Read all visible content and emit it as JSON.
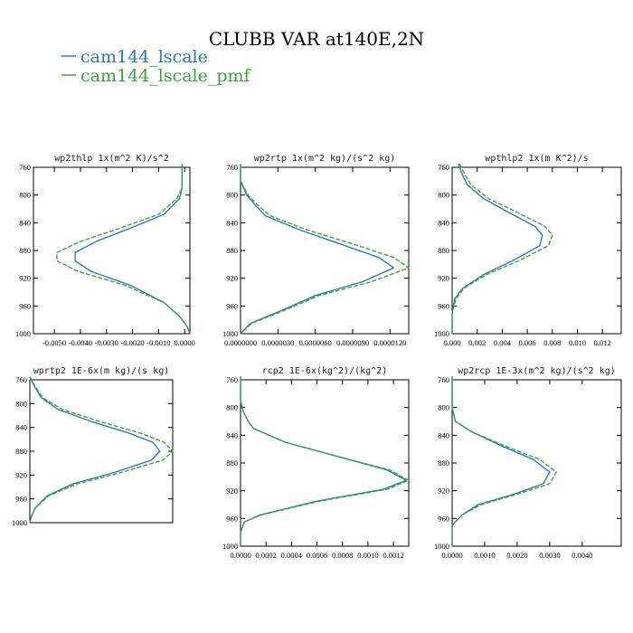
{
  "figure": {
    "title": "CLUBB VAR at140E,2N",
    "legend": [
      {
        "label": "cam144_lscale",
        "color": "#2b7bba"
      },
      {
        "label": "cam144_lscale_pmf",
        "color": "#3aa63a"
      }
    ]
  },
  "chart_data": [
    {
      "type": "line",
      "title": "wp2thlp   1x(m^2 K)/s^2",
      "xlim": [
        -0.0058,
        0.0002
      ],
      "ylim": [
        760,
        1000
      ],
      "xticks": [
        "-0.0050",
        "-0.0040",
        "-0.0030",
        "-0.0020",
        "-0.0010",
        "0.0000"
      ],
      "xtick_values": [
        -0.005,
        -0.004,
        -0.003,
        -0.002,
        -0.001,
        0.0
      ],
      "yticks": [
        760,
        800,
        840,
        880,
        920,
        960,
        1000
      ],
      "y": [
        755,
        770,
        790,
        805,
        828,
        848,
        867,
        883,
        895,
        910,
        930,
        955,
        975,
        990,
        1000
      ],
      "series": [
        {
          "name": "cam144_lscale",
          "values": [
            -0.0001,
            -0.0001,
            -0.0001,
            -0.0002,
            -0.0008,
            -0.0021,
            -0.0034,
            -0.0042,
            -0.0042,
            -0.0036,
            -0.0021,
            -0.0008,
            -0.0002,
            0.0001,
            0.0002
          ]
        },
        {
          "name": "cam144_lscale_pmf",
          "values": [
            -0.0001,
            -0.0001,
            -0.0001,
            -0.0003,
            -0.001,
            -0.0025,
            -0.004,
            -0.0049,
            -0.0049,
            -0.0041,
            -0.0023,
            -0.0008,
            -0.0002,
            0.0001,
            0.0002
          ]
        }
      ]
    },
    {
      "type": "line",
      "title": "wp2rtp   1x(m^2 kg)/(s^2 kg)",
      "xlim": [
        0,
        1.35e-05
      ],
      "ylim": [
        760,
        1000
      ],
      "xticks": [
        "0.0000000",
        "0.0000030",
        "0.0000060",
        "0.0000090",
        "0.0000120"
      ],
      "xtick_values": [
        0.0,
        3e-06,
        6e-06,
        9e-06,
        1.2e-05
      ],
      "yticks": [
        760,
        800,
        840,
        880,
        920,
        960,
        1000
      ],
      "y": [
        755,
        780,
        800,
        815,
        830,
        850,
        870,
        890,
        905,
        925,
        945,
        965,
        985,
        1000
      ],
      "series": [
        {
          "name": "cam144_lscale",
          "values": [
            0.0,
            0.0,
            5e-07,
            1.2e-06,
            2e-06,
            4.7e-06,
            7.9e-06,
            1.11e-05,
            1.23e-05,
            9.8e-06,
            6e-06,
            3.5e-06,
            8e-07,
            0.0
          ]
        },
        {
          "name": "cam144_lscale_pmf",
          "values": [
            0.0,
            0.0,
            6e-07,
            1.4e-06,
            2.4e-06,
            5.3e-06,
            8.9e-06,
            1.23e-05,
            1.35e-05,
            1.05e-05,
            6.3e-06,
            3.7e-06,
            9e-07,
            0.0
          ]
        }
      ]
    },
    {
      "type": "line",
      "title": "wpthlp2   1x(m K^2)/s",
      "xlim": [
        0,
        0.0135
      ],
      "ylim": [
        760,
        1000
      ],
      "xticks": [
        "0.000",
        "0.002",
        "0.004",
        "0.006",
        "0.008",
        "0.010",
        "0.012"
      ],
      "xtick_values": [
        0.0,
        0.002,
        0.004,
        0.006,
        0.008,
        0.01,
        0.012
      ],
      "yticks": [
        760,
        800,
        840,
        880,
        920,
        960,
        1000
      ],
      "y": [
        755,
        770,
        785,
        805,
        825,
        845,
        858,
        873,
        895,
        915,
        935,
        950,
        970,
        985,
        1000
      ],
      "series": [
        {
          "name": "cam144_lscale",
          "values": [
            0.0005,
            0.0008,
            0.0012,
            0.0025,
            0.0045,
            0.0066,
            0.0072,
            0.007,
            0.0048,
            0.0025,
            0.0008,
            0.0002,
            0.0,
            0.0,
            0.0
          ]
        },
        {
          "name": "cam144_lscale_pmf",
          "values": [
            0.0006,
            0.001,
            0.0015,
            0.0029,
            0.0052,
            0.0074,
            0.008,
            0.0077,
            0.0053,
            0.0027,
            0.0009,
            0.0003,
            0.0,
            0.0,
            0.0
          ]
        }
      ]
    },
    {
      "type": "line",
      "title": "wprtp2   1E-6x(m kg)/(s kg)",
      "xlim": [
        0,
        10
      ],
      "ylim": [
        760,
        1000
      ],
      "xticks": [],
      "xtick_values": [],
      "yticks": [
        760,
        800,
        840,
        880,
        920,
        960,
        1000
      ],
      "y": [
        755,
        770,
        790,
        810,
        830,
        850,
        865,
        880,
        895,
        915,
        935,
        955,
        975,
        990,
        1000
      ],
      "series": [
        {
          "name": "cam144_lscale",
          "values": [
            0.0,
            0.3,
            0.8,
            2.0,
            4.3,
            7.0,
            8.6,
            9.1,
            8.5,
            6.0,
            3.0,
            1.2,
            0.4,
            0.1,
            0.0
          ]
        },
        {
          "name": "cam144_lscale_pmf",
          "values": [
            0.0,
            0.35,
            0.9,
            2.3,
            4.9,
            7.8,
            9.4,
            10.0,
            9.3,
            6.5,
            3.3,
            1.3,
            0.4,
            0.1,
            0.0
          ]
        }
      ]
    },
    {
      "type": "line",
      "title": "rcp2   1E-6x(kg^2)/(kg^2)",
      "xlim": [
        0,
        0.00132
      ],
      "ylim": [
        760,
        1000
      ],
      "xticks": [
        "0.0000",
        "0.0002",
        "0.0004",
        "0.0006",
        "0.0008",
        "0.0010",
        "0.0012"
      ],
      "xtick_values": [
        0.0,
        0.0002,
        0.0004,
        0.0006,
        0.0008,
        0.001,
        0.0012
      ],
      "yticks": [
        760,
        800,
        840,
        880,
        920,
        960,
        1000
      ],
      "y": [
        755,
        790,
        805,
        820,
        830,
        850,
        870,
        890,
        905,
        918,
        935,
        955,
        965,
        980,
        1000
      ],
      "series": [
        {
          "name": "cam144_lscale",
          "values": [
            0.0,
            0.0,
            2e-05,
            6e-05,
            0.0001,
            0.00035,
            0.00075,
            0.00115,
            0.0013,
            0.00112,
            0.0006,
            0.00015,
            3e-05,
            0.0,
            0.0
          ]
        },
        {
          "name": "cam144_lscale_pmf",
          "values": [
            0.0,
            0.0,
            2e-05,
            6e-05,
            0.0001,
            0.00035,
            0.00075,
            0.00117,
            0.00132,
            0.00115,
            0.00062,
            0.00016,
            3e-05,
            0.0,
            0.0
          ]
        }
      ]
    },
    {
      "type": "line",
      "title": "wp2rcp   1E-3x(m^2 kg)/(s^2 kg)",
      "xlim": [
        0,
        0.0052
      ],
      "ylim": [
        760,
        1000
      ],
      "xticks": [
        "0.0000",
        "0.0010",
        "0.0020",
        "0.0030",
        "0.0040"
      ],
      "xtick_values": [
        0.0,
        0.001,
        0.002,
        0.003,
        0.004
      ],
      "yticks": [
        760,
        800,
        840,
        880,
        920,
        960,
        1000
      ],
      "y": [
        755,
        800,
        820,
        835,
        855,
        875,
        893,
        910,
        925,
        940,
        955,
        970,
        985,
        1000
      ],
      "series": [
        {
          "name": "cam144_lscale",
          "values": [
            0.0,
            0.0,
            0.0001,
            0.0006,
            0.0015,
            0.0025,
            0.003,
            0.0028,
            0.0019,
            0.0008,
            0.0003,
            0.0,
            0.0,
            0.0
          ]
        },
        {
          "name": "cam144_lscale_pmf",
          "values": [
            0.0,
            0.0,
            0.0001,
            0.0006,
            0.0016,
            0.0027,
            0.0032,
            0.003,
            0.002,
            0.0009,
            0.0003,
            0.0,
            0.0,
            0.0
          ]
        }
      ]
    }
  ]
}
